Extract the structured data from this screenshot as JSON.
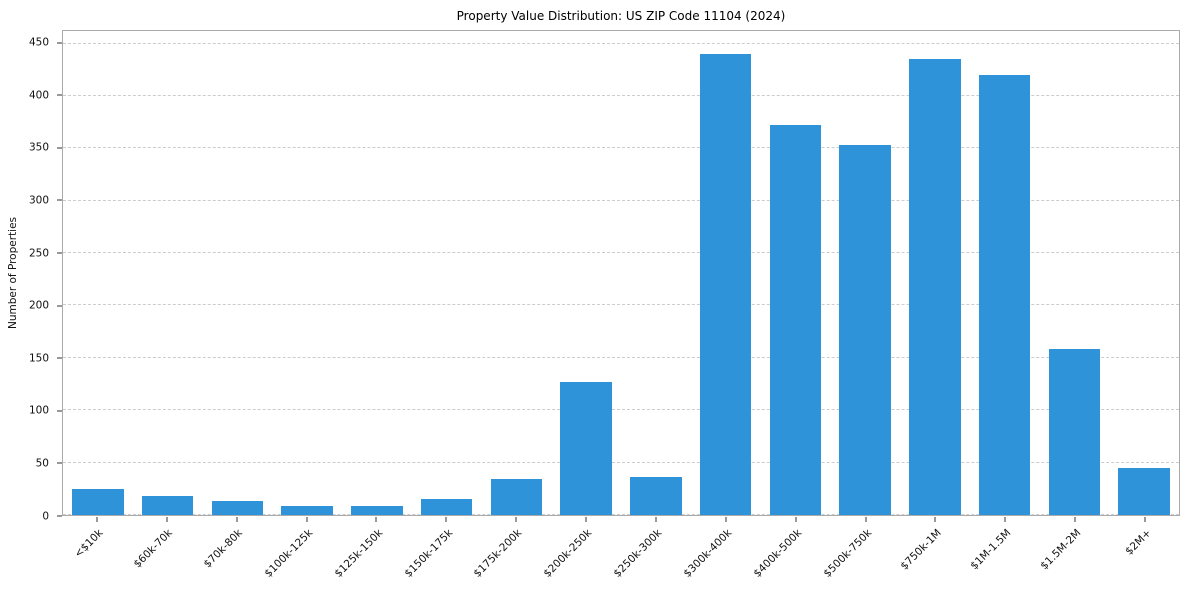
{
  "chart_data": {
    "type": "bar",
    "title": "Property Value Distribution: US ZIP Code 11104 (2024)",
    "xlabel": "",
    "ylabel": "Number of Properties",
    "categories": [
      "<$10k",
      "$60k-70k",
      "$70k-80k",
      "$100k-125k",
      "$125k-150k",
      "$150k-175k",
      "$175k-200k",
      "$200k-250k",
      "$250k-300k",
      "$300k-400k",
      "$400k-500k",
      "$500k-750k",
      "$750k-1M",
      "$1M-1.5M",
      "$1.5M-2M",
      "$2M+"
    ],
    "values": [
      25,
      18,
      13,
      9,
      9,
      15,
      34,
      127,
      36,
      440,
      372,
      353,
      435,
      420,
      158,
      45
    ],
    "ylim": [
      0,
      462
    ],
    "yticks": [
      0,
      50,
      100,
      150,
      200,
      250,
      300,
      350,
      400,
      450
    ],
    "grid": "horizontal-dashed",
    "legend": "none",
    "bar_color": "#2e93d8",
    "gridline_color": "#cccccc",
    "spine_color": "#aaaaaa",
    "text_color": "#111111"
  }
}
